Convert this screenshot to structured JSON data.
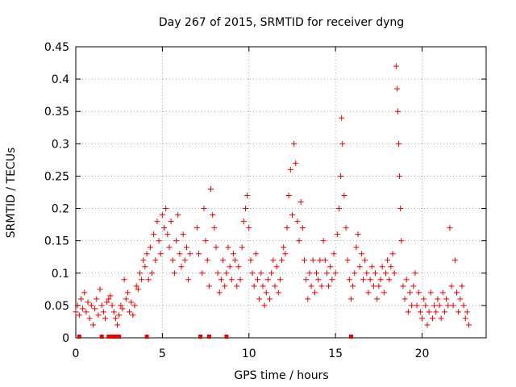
{
  "chart_data": {
    "type": "scatter",
    "title": "Day 267 of 2015, SRMTID for receiver dyng",
    "xlabel": "GPS time / hours",
    "ylabel": "SRMTID / TECUs",
    "xlim": [
      0,
      23.7
    ],
    "ylim": [
      0,
      0.45
    ],
    "x_ticks": [
      0,
      5,
      10,
      15,
      20
    ],
    "y_ticks": [
      0,
      0.05,
      0.1,
      0.15,
      0.2,
      0.25,
      0.3,
      0.35,
      0.4,
      0.45
    ],
    "x_tick_labels": [
      "0",
      "5",
      "10",
      "15",
      "20"
    ],
    "y_tick_labels": [
      "0",
      "0.05",
      "0.1",
      "0.15",
      "0.2",
      "0.25",
      "0.3",
      "0.35",
      "0.4",
      "0.45"
    ],
    "grid": true,
    "marker": "+",
    "color": "#e60000",
    "series": [
      {
        "name": "SRMTID",
        "points": [
          [
            0.0,
            0.04
          ],
          [
            0.1,
            0.05
          ],
          [
            0.2,
            0.035
          ],
          [
            0.3,
            0.06
          ],
          [
            0.4,
            0.045
          ],
          [
            0.5,
            0.07
          ],
          [
            0.6,
            0.04
          ],
          [
            0.7,
            0.055
          ],
          [
            0.8,
            0.03
          ],
          [
            0.9,
            0.05
          ],
          [
            1.0,
            0.02
          ],
          [
            1.1,
            0.045
          ],
          [
            1.2,
            0.06
          ],
          [
            1.3,
            0.035
          ],
          [
            1.4,
            0.075
          ],
          [
            1.5,
            0.05
          ],
          [
            1.6,
            0.04
          ],
          [
            1.7,
            0.03
          ],
          [
            1.8,
            0.055
          ],
          [
            1.9,
            0.06
          ],
          [
            2.0,
            0.065
          ],
          [
            2.1,
            0.05
          ],
          [
            2.2,
            0.04
          ],
          [
            2.3,
            0.03
          ],
          [
            2.4,
            0.02
          ],
          [
            2.5,
            0.035
          ],
          [
            2.6,
            0.05
          ],
          [
            2.7,
            0.045
          ],
          [
            2.8,
            0.09
          ],
          [
            2.9,
            0.06
          ],
          [
            3.0,
            0.07
          ],
          [
            3.1,
            0.04
          ],
          [
            3.2,
            0.055
          ],
          [
            3.3,
            0.035
          ],
          [
            3.4,
            0.05
          ],
          [
            3.5,
            0.08
          ],
          [
            3.6,
            0.075
          ],
          [
            3.7,
            0.1
          ],
          [
            3.8,
            0.09
          ],
          [
            3.9,
            0.12
          ],
          [
            4.0,
            0.11
          ],
          [
            4.1,
            0.13
          ],
          [
            4.2,
            0.09
          ],
          [
            4.3,
            0.14
          ],
          [
            4.4,
            0.1
          ],
          [
            4.5,
            0.16
          ],
          [
            4.6,
            0.12
          ],
          [
            4.7,
            0.18
          ],
          [
            4.8,
            0.15
          ],
          [
            4.9,
            0.13
          ],
          [
            5.0,
            0.19
          ],
          [
            5.1,
            0.17
          ],
          [
            5.2,
            0.2
          ],
          [
            5.3,
            0.16
          ],
          [
            5.4,
            0.14
          ],
          [
            5.5,
            0.18
          ],
          [
            5.6,
            0.12
          ],
          [
            5.7,
            0.1
          ],
          [
            5.8,
            0.15
          ],
          [
            5.9,
            0.19
          ],
          [
            6.0,
            0.13
          ],
          [
            6.1,
            0.11
          ],
          [
            6.2,
            0.16
          ],
          [
            6.3,
            0.12
          ],
          [
            6.4,
            0.14
          ],
          [
            6.5,
            0.09
          ],
          [
            6.6,
            0.13
          ],
          [
            7.0,
            0.17
          ],
          [
            7.1,
            0.13
          ],
          [
            7.3,
            0.1
          ],
          [
            7.4,
            0.2
          ],
          [
            7.5,
            0.15
          ],
          [
            7.6,
            0.12
          ],
          [
            7.7,
            0.08
          ],
          [
            7.8,
            0.23
          ],
          [
            7.9,
            0.19
          ],
          [
            8.0,
            0.17
          ],
          [
            8.1,
            0.14
          ],
          [
            8.2,
            0.1
          ],
          [
            8.3,
            0.07
          ],
          [
            8.4,
            0.09
          ],
          [
            8.5,
            0.12
          ],
          [
            8.6,
            0.08
          ],
          [
            8.7,
            0.1
          ],
          [
            8.8,
            0.14
          ],
          [
            8.9,
            0.11
          ],
          [
            9.0,
            0.09
          ],
          [
            9.1,
            0.13
          ],
          [
            9.2,
            0.12
          ],
          [
            9.3,
            0.08
          ],
          [
            9.4,
            0.11
          ],
          [
            9.5,
            0.09
          ],
          [
            9.6,
            0.14
          ],
          [
            9.7,
            0.18
          ],
          [
            9.8,
            0.2
          ],
          [
            9.9,
            0.22
          ],
          [
            10.0,
            0.17
          ],
          [
            10.1,
            0.12
          ],
          [
            10.2,
            0.1
          ],
          [
            10.3,
            0.08
          ],
          [
            10.4,
            0.13
          ],
          [
            10.5,
            0.09
          ],
          [
            10.6,
            0.06
          ],
          [
            10.7,
            0.1
          ],
          [
            10.8,
            0.08
          ],
          [
            10.9,
            0.05
          ],
          [
            11.0,
            0.07
          ],
          [
            11.1,
            0.09
          ],
          [
            11.2,
            0.06
          ],
          [
            11.3,
            0.1
          ],
          [
            11.4,
            0.12
          ],
          [
            11.5,
            0.08
          ],
          [
            11.6,
            0.11
          ],
          [
            11.7,
            0.07
          ],
          [
            11.8,
            0.09
          ],
          [
            11.9,
            0.12
          ],
          [
            12.0,
            0.14
          ],
          [
            12.1,
            0.13
          ],
          [
            12.2,
            0.17
          ],
          [
            12.3,
            0.22
          ],
          [
            12.4,
            0.26
          ],
          [
            12.5,
            0.19
          ],
          [
            12.6,
            0.3
          ],
          [
            12.7,
            0.27
          ],
          [
            12.8,
            0.18
          ],
          [
            12.9,
            0.15
          ],
          [
            13.0,
            0.21
          ],
          [
            13.1,
            0.17
          ],
          [
            13.2,
            0.12
          ],
          [
            13.3,
            0.09
          ],
          [
            13.4,
            0.06
          ],
          [
            13.5,
            0.1
          ],
          [
            13.6,
            0.08
          ],
          [
            13.7,
            0.12
          ],
          [
            13.8,
            0.07
          ],
          [
            13.9,
            0.1
          ],
          [
            14.0,
            0.09
          ],
          [
            14.1,
            0.12
          ],
          [
            14.2,
            0.08
          ],
          [
            14.3,
            0.15
          ],
          [
            14.4,
            0.12
          ],
          [
            14.5,
            0.1
          ],
          [
            14.6,
            0.08
          ],
          [
            14.7,
            0.11
          ],
          [
            14.8,
            0.09
          ],
          [
            14.9,
            0.13
          ],
          [
            15.0,
            0.1
          ],
          [
            15.1,
            0.16
          ],
          [
            15.2,
            0.2
          ],
          [
            15.3,
            0.25
          ],
          [
            15.35,
            0.34
          ],
          [
            15.4,
            0.3
          ],
          [
            15.5,
            0.22
          ],
          [
            15.6,
            0.17
          ],
          [
            15.7,
            0.12
          ],
          [
            15.8,
            0.09
          ],
          [
            15.9,
            0.06
          ],
          [
            16.0,
            0.08
          ],
          [
            16.1,
            0.1
          ],
          [
            16.2,
            0.14
          ],
          [
            16.3,
            0.16
          ],
          [
            16.4,
            0.11
          ],
          [
            16.5,
            0.13
          ],
          [
            16.6,
            0.09
          ],
          [
            16.7,
            0.12
          ],
          [
            16.8,
            0.1
          ],
          [
            16.9,
            0.07
          ],
          [
            17.0,
            0.09
          ],
          [
            17.1,
            0.11
          ],
          [
            17.2,
            0.08
          ],
          [
            17.3,
            0.1
          ],
          [
            17.4,
            0.06
          ],
          [
            17.5,
            0.08
          ],
          [
            17.6,
            0.09
          ],
          [
            17.7,
            0.11
          ],
          [
            17.8,
            0.07
          ],
          [
            17.9,
            0.1
          ],
          [
            18.0,
            0.12
          ],
          [
            18.1,
            0.09
          ],
          [
            18.2,
            0.11
          ],
          [
            18.3,
            0.13
          ],
          [
            18.4,
            0.1
          ],
          [
            18.5,
            0.42
          ],
          [
            18.55,
            0.385
          ],
          [
            18.6,
            0.35
          ],
          [
            18.65,
            0.3
          ],
          [
            18.7,
            0.25
          ],
          [
            18.75,
            0.2
          ],
          [
            18.8,
            0.15
          ],
          [
            18.9,
            0.08
          ],
          [
            19.0,
            0.06
          ],
          [
            19.1,
            0.09
          ],
          [
            19.2,
            0.04
          ],
          [
            19.3,
            0.07
          ],
          [
            19.4,
            0.05
          ],
          [
            19.5,
            0.08
          ],
          [
            19.6,
            0.1
          ],
          [
            19.7,
            0.05
          ],
          [
            19.8,
            0.07
          ],
          [
            19.9,
            0.04
          ],
          [
            20.0,
            0.03
          ],
          [
            20.1,
            0.06
          ],
          [
            20.2,
            0.05
          ],
          [
            20.3,
            0.02
          ],
          [
            20.4,
            0.04
          ],
          [
            20.5,
            0.07
          ],
          [
            20.6,
            0.03
          ],
          [
            20.7,
            0.05
          ],
          [
            20.8,
            0.04
          ],
          [
            20.9,
            0.06
          ],
          [
            21.0,
            0.05
          ],
          [
            21.1,
            0.03
          ],
          [
            21.2,
            0.07
          ],
          [
            21.3,
            0.04
          ],
          [
            21.4,
            0.06
          ],
          [
            21.5,
            0.05
          ],
          [
            21.6,
            0.17
          ],
          [
            21.7,
            0.08
          ],
          [
            21.8,
            0.05
          ],
          [
            21.9,
            0.12
          ],
          [
            22.0,
            0.07
          ],
          [
            22.1,
            0.04
          ],
          [
            22.2,
            0.06
          ],
          [
            22.3,
            0.08
          ],
          [
            22.4,
            0.05
          ],
          [
            22.5,
            0.03
          ],
          [
            22.6,
            0.04
          ],
          [
            22.7,
            0.02
          ]
        ]
      }
    ],
    "bottom_markers_x": [
      0.2,
      1.5,
      1.9,
      2.1,
      2.3,
      2.5,
      4.1,
      7.2,
      7.7,
      8.7,
      15.9
    ]
  }
}
